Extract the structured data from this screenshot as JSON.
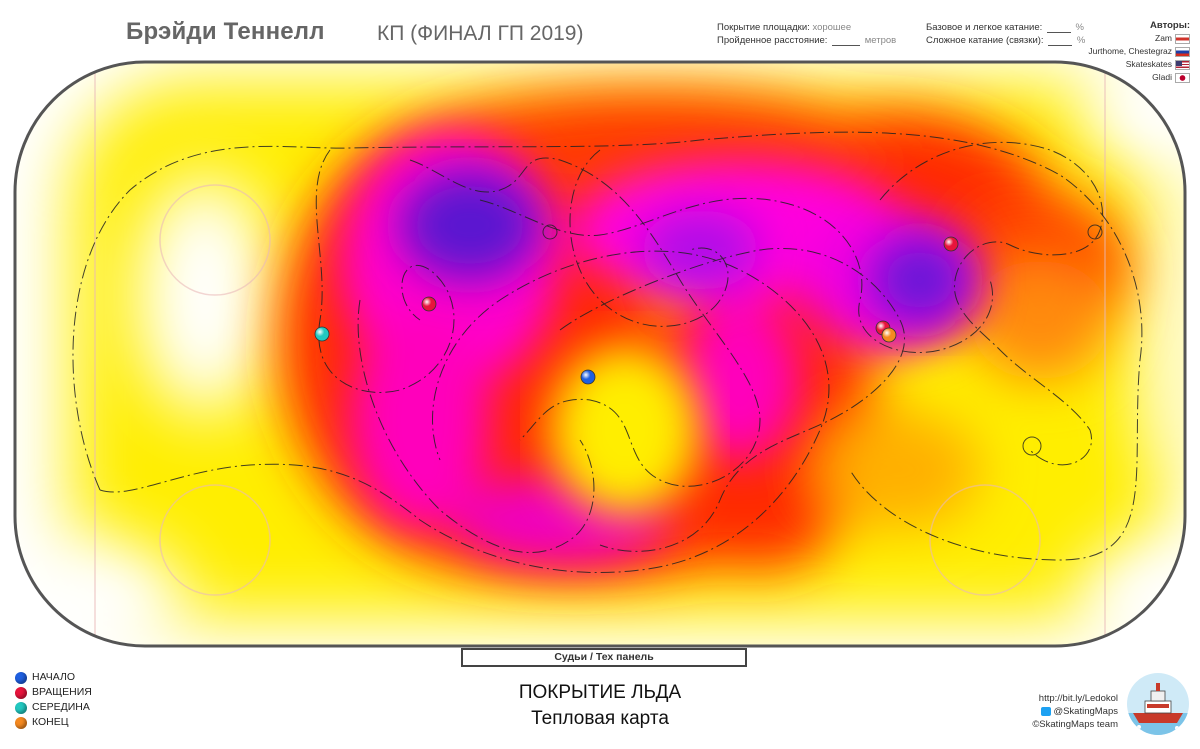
{
  "header": {
    "skater": "Брэйди Теннелл",
    "event": "КП (ФИНАЛ ГП 2019)",
    "coverage_label": "Покрытие площадки:",
    "coverage_value": "хорошее",
    "distance_label": "Пройденное расстояние:",
    "distance_unit": "метров",
    "basic_label": "Базовое и легкое катание:",
    "complex_label": "Сложное катание (связки):",
    "percent_sign": "%"
  },
  "authors": {
    "title": "Авторы:",
    "items": [
      {
        "name": "Zam",
        "flag": "by"
      },
      {
        "name": "Jurthome, Chestegraz",
        "flag": "ru"
      },
      {
        "name": "Skateskates",
        "flag": "us"
      },
      {
        "name": "Gladi",
        "flag": "jp"
      }
    ]
  },
  "rink": {
    "judges_label": "Судьи / Тех панель"
  },
  "legend": {
    "items": [
      {
        "label": "НАЧАЛО",
        "color": "#1f5fe0"
      },
      {
        "label": "ВРАЩЕНИЯ",
        "color": "#e8143c"
      },
      {
        "label": "СЕРЕДИНА",
        "color": "#22c8c0"
      },
      {
        "label": "КОНЕЦ",
        "color": "#f5891f"
      }
    ]
  },
  "titles": {
    "main": "ПОКРЫТИЕ ЛЬДА",
    "sub": "Тепловая карта"
  },
  "links": {
    "url": "http://bit.ly/Ledokol",
    "twitter": "@SkatingMaps",
    "copyright": "©SkatingMaps team"
  },
  "colors": {
    "heat_low": "#ffee00",
    "heat_mid": "#ff2200",
    "heat_high": "#ff00dd",
    "heat_max": "#6a10d0",
    "rink_border": "#555555"
  }
}
